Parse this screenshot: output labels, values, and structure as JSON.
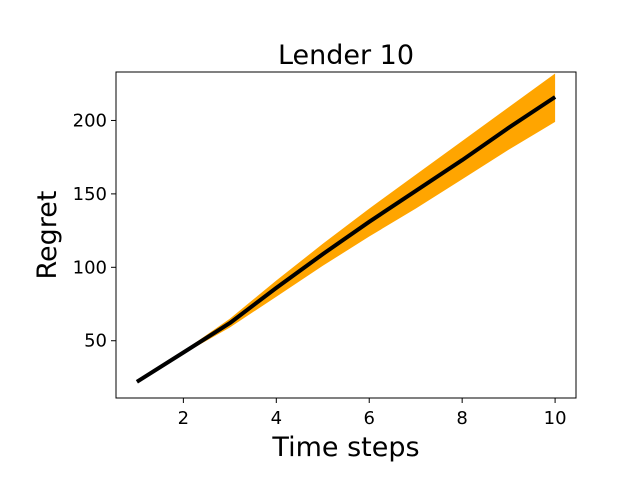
{
  "chart_data": {
    "type": "line",
    "title": "Lender 10",
    "xlabel": "Time steps",
    "ylabel": "Regret",
    "xlim": [
      0.55,
      10.45
    ],
    "ylim": [
      11,
      233
    ],
    "xticks": [
      2,
      4,
      6,
      8,
      10
    ],
    "yticks": [
      50,
      100,
      150,
      200
    ],
    "grid": false,
    "legend": "none",
    "series": [
      {
        "x": [
          1,
          2,
          3,
          4,
          5,
          6,
          7,
          8,
          9,
          10
        ],
        "mean": [
          22,
          42,
          62,
          86,
          109,
          131,
          152,
          173,
          195,
          216
        ],
        "lower": [
          22,
          41,
          59,
          80,
          101,
          121,
          140,
          160,
          180,
          199
        ],
        "upper": [
          22,
          43,
          65,
          91,
          116,
          140,
          163,
          186,
          209,
          232
        ],
        "line_color": "#000000",
        "band_color": "#FFA500"
      }
    ]
  }
}
